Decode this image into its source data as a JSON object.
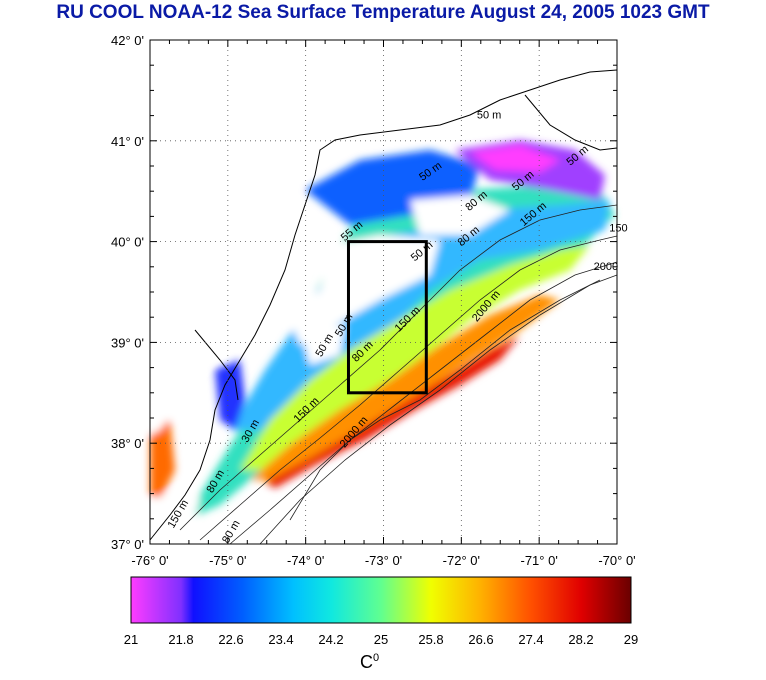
{
  "title": "RU COOL  NOAA-12 Sea Surface Temperature August 24, 2005 1023 GMT",
  "map": {
    "lat_labels": [
      "42° 0'",
      "41° 0'",
      "40° 0'",
      "39° 0'",
      "38° 0'",
      "37° 0'"
    ],
    "lon_labels": [
      "-76° 0'",
      "-75° 0'",
      "-74° 0'",
      "-73° 0'",
      "-72° 0'",
      "-71° 0'",
      "-70° 0'"
    ],
    "lat_values": [
      42,
      41,
      40,
      39,
      38,
      37
    ],
    "lon_values": [
      -76,
      -75,
      -74,
      -73,
      -72,
      -71,
      -70
    ],
    "study_box": {
      "lon_min": -73.45,
      "lon_max": -72.45,
      "lat_min": 38.5,
      "lat_max": 40.0
    },
    "contour_labels": [
      {
        "text": "50 m",
        "lon": -71.8,
        "lat": 41.22,
        "rot": 0
      },
      {
        "text": "50 m",
        "lon": -72.5,
        "lat": 40.6,
        "rot": -35
      },
      {
        "text": "80 m",
        "lon": -71.9,
        "lat": 40.3,
        "rot": -40
      },
      {
        "text": "50 m",
        "lon": -71.3,
        "lat": 40.5,
        "rot": -40
      },
      {
        "text": "50 m",
        "lon": -70.6,
        "lat": 40.75,
        "rot": -40
      },
      {
        "text": "150 m",
        "lon": -71.2,
        "lat": 40.15,
        "rot": -40
      },
      {
        "text": "150",
        "lon": -70.1,
        "lat": 40.1,
        "rot": 0
      },
      {
        "text": "2000",
        "lon": -70.3,
        "lat": 39.72,
        "rot": 0
      },
      {
        "text": "55 m",
        "lon": -73.5,
        "lat": 40.0,
        "rot": -40
      },
      {
        "text": "50 m",
        "lon": -72.6,
        "lat": 39.8,
        "rot": -40
      },
      {
        "text": "80 m",
        "lon": -72.0,
        "lat": 39.95,
        "rot": -40
      },
      {
        "text": "150 m",
        "lon": -72.8,
        "lat": 39.1,
        "rot": -45
      },
      {
        "text": "2000 m",
        "lon": -71.8,
        "lat": 39.2,
        "rot": -50
      },
      {
        "text": "50 m",
        "lon": -73.55,
        "lat": 39.05,
        "rot": -60
      },
      {
        "text": "50 m",
        "lon": -73.8,
        "lat": 38.85,
        "rot": -60
      },
      {
        "text": "80 m",
        "lon": -73.35,
        "lat": 38.8,
        "rot": -45
      },
      {
        "text": "150 m",
        "lon": -74.1,
        "lat": 38.2,
        "rot": -45
      },
      {
        "text": "2000 m",
        "lon": -73.5,
        "lat": 37.95,
        "rot": -50
      },
      {
        "text": "30 m",
        "lon": -74.75,
        "lat": 38.0,
        "rot": -60
      },
      {
        "text": "80 m",
        "lon": -75.2,
        "lat": 37.5,
        "rot": -60
      },
      {
        "text": "150 m",
        "lon": -75.7,
        "lat": 37.15,
        "rot": -60
      },
      {
        "text": "80 m",
        "lon": -75.0,
        "lat": 37.0,
        "rot": -60
      }
    ]
  },
  "colorbar": {
    "min": 21,
    "max": 29,
    "tick_labels": [
      "21",
      "21.8",
      "22.6",
      "23.4",
      "24.2",
      "25",
      "25.8",
      "26.6",
      "27.4",
      "28.2",
      "29"
    ],
    "tick_values": [
      21,
      21.8,
      22.6,
      23.4,
      24.2,
      25,
      25.8,
      26.6,
      27.4,
      28.2,
      29
    ],
    "unit": "C",
    "unit_superscript": "0",
    "stops": [
      {
        "value": 21.0,
        "color": "#ff3cff"
      },
      {
        "value": 21.8,
        "color": "#8030ff"
      },
      {
        "value": 22.0,
        "color": "#1010ff"
      },
      {
        "value": 22.8,
        "color": "#0060ff"
      },
      {
        "value": 23.6,
        "color": "#00c0ff"
      },
      {
        "value": 24.2,
        "color": "#10e8e0"
      },
      {
        "value": 25.0,
        "color": "#60ff90"
      },
      {
        "value": 25.8,
        "color": "#f0ff00"
      },
      {
        "value": 26.6,
        "color": "#ffb000"
      },
      {
        "value": 27.4,
        "color": "#ff5000"
      },
      {
        "value": 28.2,
        "color": "#e00000"
      },
      {
        "value": 29.0,
        "color": "#6a0000"
      }
    ]
  }
}
